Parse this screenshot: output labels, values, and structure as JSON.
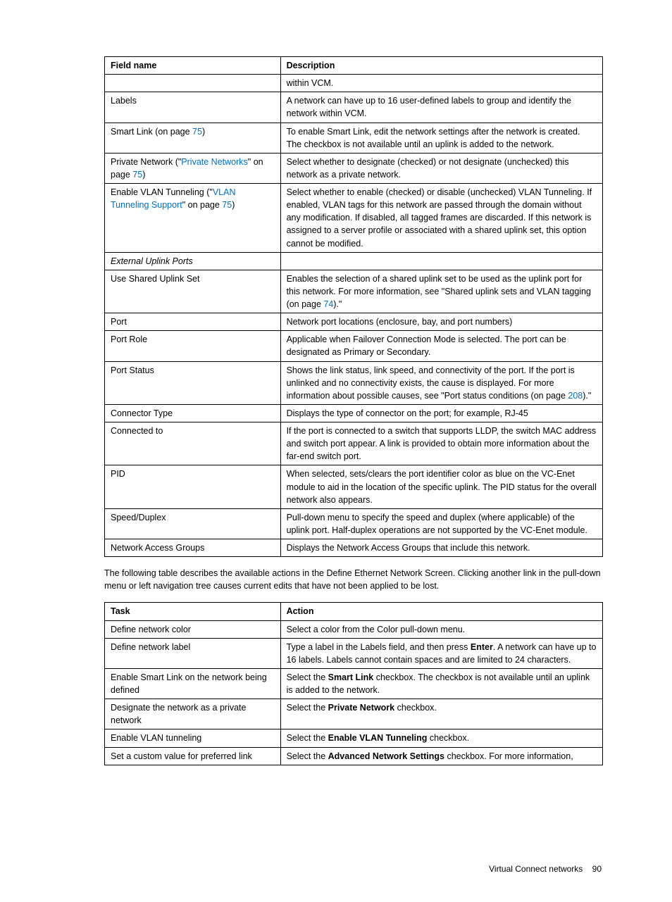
{
  "page": {
    "footer_text": "Virtual Connect networks",
    "page_number": "90",
    "paragraph": "The following table describes the available actions in the Define Ethernet Network Screen. Clicking another link in the pull-down menu or left navigation tree causes current edits that have not been applied to be lost."
  },
  "table1": {
    "headers": [
      "Field name",
      "Description"
    ],
    "rows": [
      {
        "field_html": "",
        "desc_html": "within VCM."
      },
      {
        "field_html": "Labels",
        "desc_html": "A network can have up to 16 user-defined labels to group and identify the network within VCM."
      },
      {
        "field_html": "Smart Link (on page <span class=\"link\">75</span>)",
        "desc_html": "To enable Smart Link, edit the network settings after the network is created. The checkbox is not available until an uplink is added to the network."
      },
      {
        "field_html": "Private Network (\"<span class=\"link\">Private Networks</span>\" on page <span class=\"link\">75</span>)",
        "desc_html": "Select whether to designate (checked) or not designate (unchecked) this network as a private network."
      },
      {
        "field_html": "Enable VLAN Tunneling (\"<span class=\"link\">VLAN Tunneling Support</span>\" on page <span class=\"link\">75</span>)",
        "desc_html": "Select whether to enable (checked) or disable (unchecked) VLAN Tunneling. If enabled, VLAN tags for this network are passed through the domain without any modification. If disabled, all tagged frames are discarded. If this network is assigned to a server profile or associated with a shared uplink set, this option cannot be modified."
      },
      {
        "field_html": "<span class=\"italic\">External Uplink Ports</span>",
        "desc_html": ""
      },
      {
        "field_html": "Use Shared Uplink Set",
        "desc_html": "Enables the selection of a shared uplink set to be used as the uplink port for this network. For more information, see \"Shared uplink sets and VLAN tagging (on page <span class=\"link\">74</span>).\""
      },
      {
        "field_html": "Port",
        "desc_html": "Network port locations (enclosure, bay, and port numbers)"
      },
      {
        "field_html": "Port Role",
        "desc_html": "Applicable when Failover Connection Mode is selected. The port can be designated as Primary or Secondary."
      },
      {
        "field_html": "Port Status",
        "desc_html": "Shows the link status, link speed, and connectivity of the port. If the port is unlinked and no connectivity exists, the cause is displayed. For more information about possible causes, see \"Port status conditions (on page <span class=\"link\">208</span>).\""
      },
      {
        "field_html": "Connector Type",
        "desc_html": "Displays the type of connector on the port; for example, RJ-45"
      },
      {
        "field_html": "Connected to",
        "desc_html": "If the port is connected to a switch that supports LLDP, the switch MAC address and switch port appear. A link is provided to obtain more information about the far-end switch port."
      },
      {
        "field_html": "PID",
        "desc_html": "When selected, sets/clears the port identifier color as blue on the VC-Enet module to aid in the location of the specific uplink. The PID status for the overall network also appears."
      },
      {
        "field_html": "Speed/Duplex",
        "desc_html": "Pull-down menu to specify the speed and duplex (where applicable) of the uplink port. Half-duplex operations are not supported by the VC-Enet module."
      },
      {
        "field_html": "Network Access Groups",
        "desc_html": "Displays the Network Access Groups that include this network."
      }
    ]
  },
  "table2": {
    "headers": [
      "Task",
      "Action"
    ],
    "rows": [
      {
        "task_html": "Define network color",
        "action_html": "Select a color from the Color pull-down menu."
      },
      {
        "task_html": "Define network label",
        "action_html": "Type a label in the Labels field, and then press <span class=\"bold\">Enter</span>. A network can have up to 16 labels. Labels cannot contain spaces and are limited to 24 characters."
      },
      {
        "task_html": "Enable Smart Link on the network being defined",
        "action_html": "Select the <span class=\"bold\">Smart Link</span> checkbox. The checkbox is not available until an uplink is added to the network."
      },
      {
        "task_html": "Designate the network as a private network",
        "action_html": "Select the <span class=\"bold\">Private Network</span> checkbox."
      },
      {
        "task_html": "Enable VLAN tunneling",
        "action_html": "Select the <span class=\"bold\">Enable VLAN Tunneling</span> checkbox."
      },
      {
        "task_html": "Set a custom value for preferred link",
        "action_html": "Select the <span class=\"bold\">Advanced Network Settings</span> checkbox. For more information,"
      }
    ]
  }
}
